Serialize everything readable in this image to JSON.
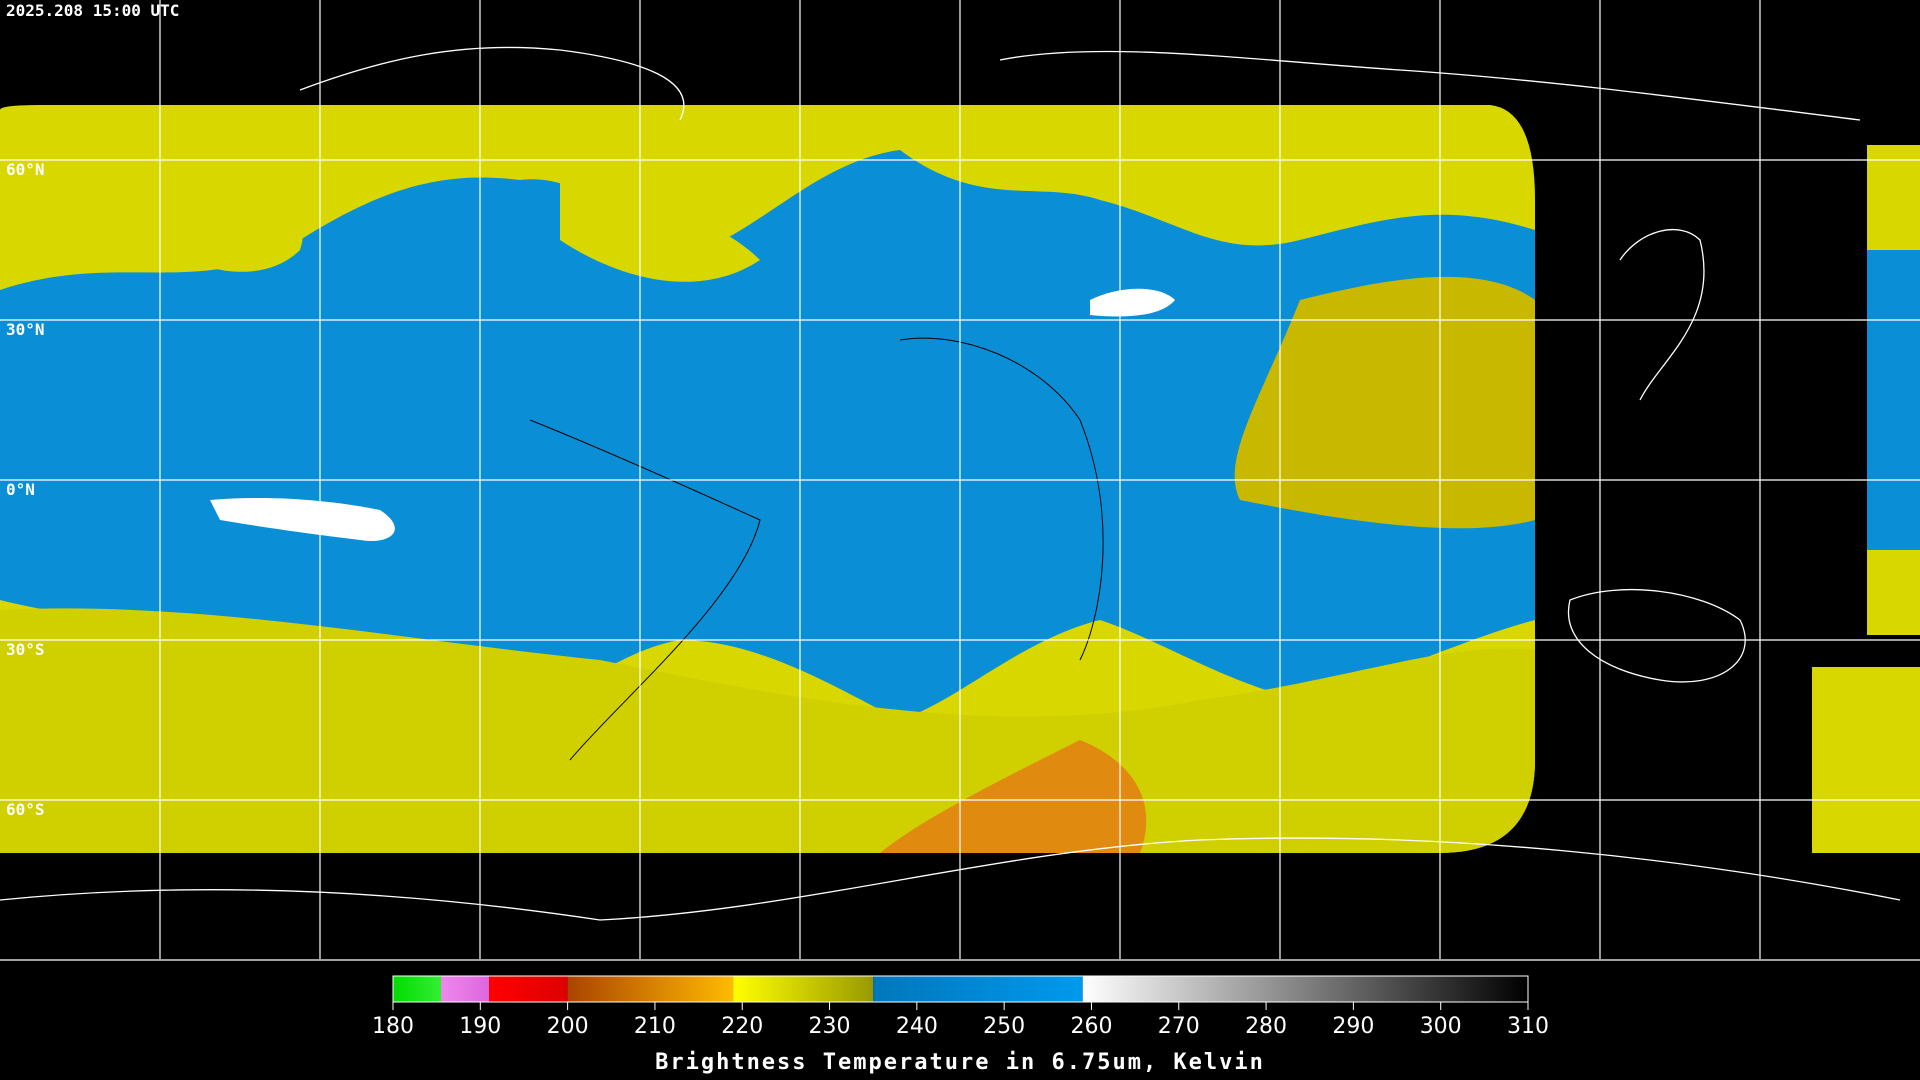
{
  "header": {
    "timestamp": "2025.208 15:00 UTC"
  },
  "map": {
    "latitude_labels": [
      "60°N",
      "30°N",
      "0°N",
      "30°S",
      "60°S"
    ]
  },
  "colorbar": {
    "title": "Brightness Temperature in 6.75um, Kelvin",
    "range": [
      180,
      310
    ],
    "ticks": [
      180,
      190,
      200,
      210,
      220,
      230,
      240,
      250,
      260,
      270,
      280,
      290,
      300,
      310
    ],
    "segments": [
      {
        "from": 180,
        "to": 185.5,
        "colors": [
          "#00dd00",
          "#33ee33"
        ]
      },
      {
        "from": 185.5,
        "to": 191,
        "colors": [
          "#ee88ee",
          "#dd66dd"
        ]
      },
      {
        "from": 191,
        "to": 200,
        "colors": [
          "#ff0000",
          "#dd0000"
        ]
      },
      {
        "from": 200,
        "to": 219,
        "colors": [
          "#aa4400",
          "#ffbb00"
        ]
      },
      {
        "from": 219,
        "to": 235,
        "colors": [
          "#ffff00",
          "#999900"
        ]
      },
      {
        "from": 235,
        "to": 259,
        "colors": [
          "#0077bb",
          "#0099ee"
        ]
      },
      {
        "from": 259,
        "to": 310,
        "colors": [
          "#ffffff",
          "#000000"
        ]
      }
    ]
  }
}
